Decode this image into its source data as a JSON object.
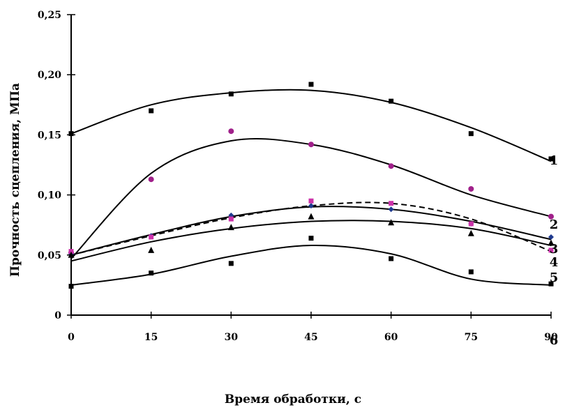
{
  "chart_data": {
    "type": "line",
    "xlabel": "Время обработки, с",
    "ylabel": "Прочность сцепления, МПа",
    "xlim": [
      0,
      90
    ],
    "ylim": [
      0,
      0.25
    ],
    "x_ticks": [
      0,
      15,
      30,
      45,
      60,
      75,
      90
    ],
    "x_tick_labels": [
      "0",
      "15",
      "30",
      "45",
      "60",
      "75",
      "90"
    ],
    "y_ticks": [
      0,
      0.05,
      0.1,
      0.15,
      0.2,
      0.25
    ],
    "y_tick_labels": [
      "0",
      "0,05",
      "0,10",
      "0,15",
      "0,20",
      "0,25"
    ],
    "grid": false,
    "legend": "series numbers at right end",
    "x": [
      0,
      15,
      30,
      45,
      60,
      75,
      90
    ],
    "series": [
      {
        "label": "1",
        "marker": "square",
        "color": "#000000",
        "line": "solid",
        "values": [
          0.151,
          0.17,
          0.184,
          0.192,
          0.178,
          0.151,
          0.13
        ],
        "trend": [
          0.151,
          0.175,
          0.185,
          0.187,
          0.177,
          0.156,
          0.128
        ]
      },
      {
        "label": "2",
        "marker": "circle",
        "color": "#a0208a",
        "line": "solid",
        "values": [
          0.052,
          0.113,
          0.153,
          0.142,
          0.124,
          0.105,
          0.082
        ],
        "trend": [
          0.047,
          0.118,
          0.145,
          0.142,
          0.125,
          0.1,
          0.082
        ]
      },
      {
        "label": "3",
        "marker": "diamond",
        "color": "#1f3a8f",
        "line": "solid",
        "values": [
          0.051,
          0.066,
          0.083,
          0.091,
          0.088,
          0.076,
          0.065
        ],
        "trend": [
          0.05,
          0.067,
          0.082,
          0.09,
          0.088,
          0.078,
          0.063
        ]
      },
      {
        "label": "4",
        "marker": "square",
        "color": "#cc33aa",
        "line": "dashed",
        "values": [
          0.053,
          0.065,
          0.08,
          0.095,
          0.093,
          0.076,
          0.054
        ],
        "trend": [
          0.05,
          0.066,
          0.081,
          0.091,
          0.093,
          0.08,
          0.053
        ]
      },
      {
        "label": "5",
        "marker": "triangle",
        "color": "#000000",
        "line": "solid",
        "values": [
          0.05,
          0.054,
          0.073,
          0.082,
          0.077,
          0.068,
          0.06
        ],
        "trend": [
          0.045,
          0.061,
          0.072,
          0.078,
          0.078,
          0.072,
          0.058
        ]
      },
      {
        "label": "6",
        "marker": "square",
        "color": "#000000",
        "line": "solid",
        "values": [
          0.024,
          0.035,
          0.043,
          0.064,
          0.047,
          0.036,
          0.026
        ],
        "trend": [
          0.025,
          0.034,
          0.049,
          0.058,
          0.051,
          0.03,
          0.025
        ]
      }
    ]
  }
}
